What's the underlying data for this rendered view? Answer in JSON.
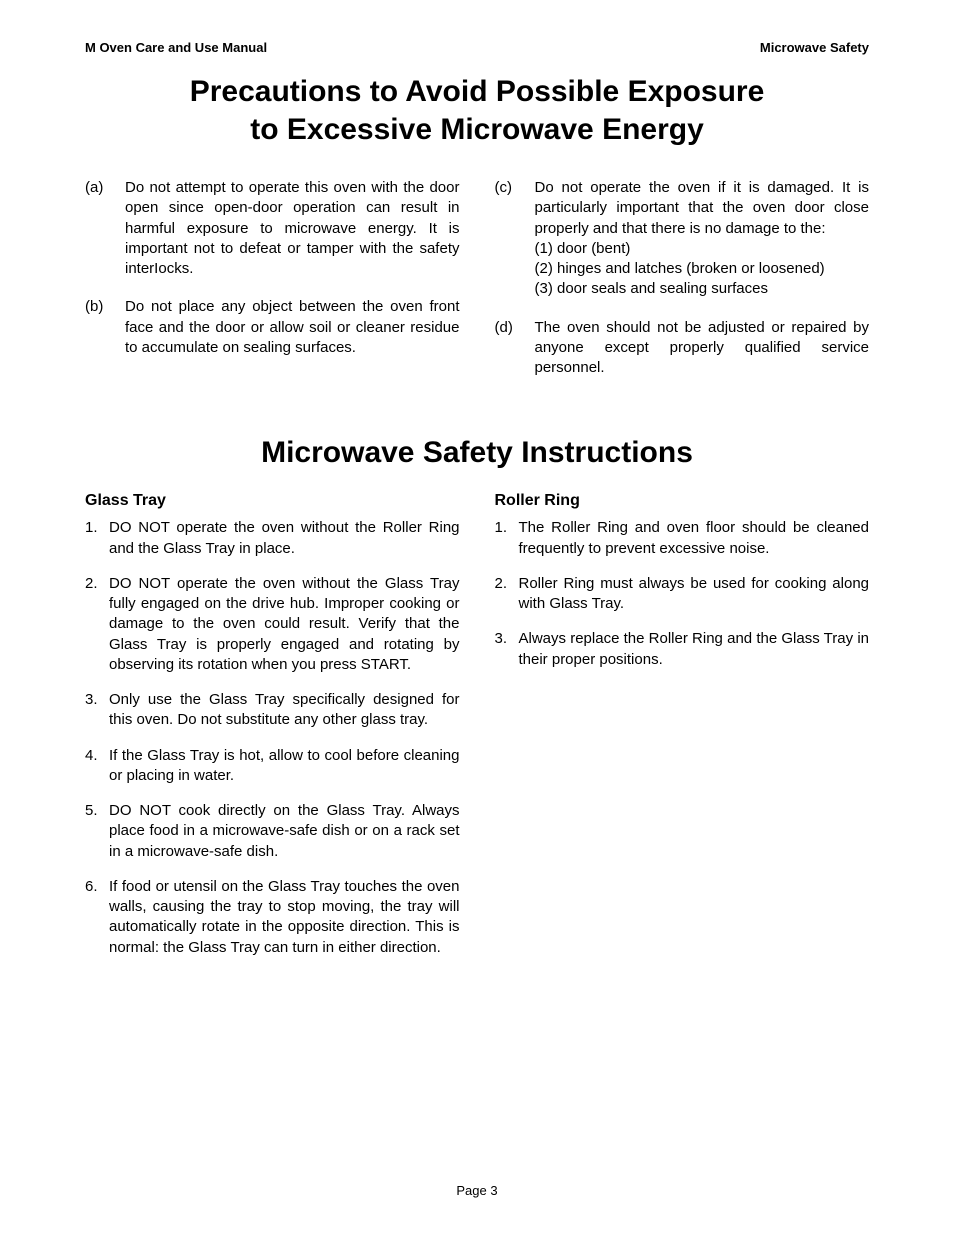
{
  "header": {
    "left": "M Oven Care and Use Manual",
    "right": "Microwave Safety"
  },
  "title1_line1": "Precautions to Avoid Possible Exposure",
  "title1_line2": "to Excessive Microwave Energy",
  "precautions": {
    "a": {
      "marker": "(a)",
      "text": "Do not attempt to operate this oven with the door open since open-door operation can result in harmful exposure to microwave energy. It is important not to defeat or tamper with the safety interIocks."
    },
    "b": {
      "marker": "(b)",
      "text": "Do not place any object between the oven front face and the door or allow soil or cleaner residue to accumulate on sealing surfaces."
    },
    "c": {
      "marker": "(c)",
      "intro": "Do not operate the oven if it is damaged. It is particularly important that the oven door close properly and that there is no damage to the:",
      "sub1": "(1) door (bent)",
      "sub2": "(2) hinges and latches (broken or loosened)",
      "sub3": "(3) door seals and sealing surfaces"
    },
    "d": {
      "marker": "(d)",
      "text": "The oven should not be adjusted or repaired by anyone except properly qualified service personnel."
    }
  },
  "title2": "Microwave Safety Instructions",
  "glass_tray": {
    "heading": "Glass Tray",
    "items": {
      "1": {
        "marker": "1.",
        "text": "DO NOT operate the oven without the Roller Ring and the Glass Tray in place."
      },
      "2": {
        "marker": "2.",
        "text": "DO NOT operate the oven without the Glass Tray fully engaged on the drive hub. Improper cooking or damage to the oven could result. Verify that the Glass Tray is properly engaged and rotating by observing its rotation when you press START."
      },
      "3": {
        "marker": "3.",
        "text": "Only use the Glass Tray specifically designed for this oven. Do not substitute any other glass tray."
      },
      "4": {
        "marker": "4.",
        "text": "If the Glass Tray is hot, allow to cool before cleaning or placing in water."
      },
      "5": {
        "marker": "5.",
        "text": "DO NOT cook directly on the Glass Tray. Always place food in a microwave-safe dish or on a rack set in a microwave-safe dish."
      },
      "6": {
        "marker": "6.",
        "text": "If food or utensil on the Glass Tray touches the oven walls, causing the tray to stop moving, the tray will automatically rotate in the opposite direction. This is normal:  the Glass Tray can turn in either direction."
      }
    }
  },
  "roller_ring": {
    "heading": "Roller Ring",
    "items": {
      "1": {
        "marker": "1.",
        "text": "The Roller Ring and oven floor should be cleaned frequently to prevent excessive noise."
      },
      "2": {
        "marker": "2.",
        "text": "Roller Ring must always be used for cooking along with Glass Tray."
      },
      "3": {
        "marker": "3.",
        "text": "Always replace the Roller Ring and the Glass Tray in their proper positions."
      }
    }
  },
  "footer": "Page 3"
}
